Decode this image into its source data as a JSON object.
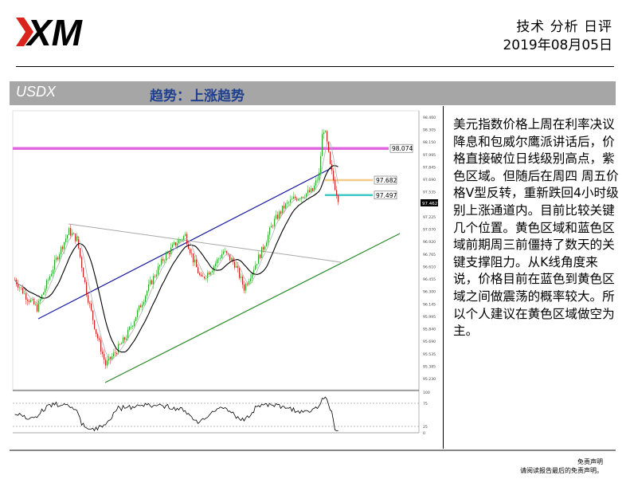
{
  "header": {
    "logo_text": "XM",
    "report_title": "技术 分析 日评",
    "report_date": "2019年08月05日"
  },
  "band": {
    "symbol": "USDX",
    "trend": "趋势：上涨趋势"
  },
  "chart_data": {
    "type": "candlestick",
    "symbol": "USDX",
    "y_ticks": [
      "98.460",
      "98.305",
      "98.150",
      "97.995",
      "97.845",
      "97.690",
      "97.535",
      "97.380",
      "97.225",
      "97.070",
      "96.920",
      "96.765",
      "96.610",
      "96.455",
      "96.300",
      "96.145",
      "95.995",
      "95.840",
      "95.690",
      "95.535",
      "95.385",
      "95.230"
    ],
    "ylim": [
      95.23,
      98.46
    ],
    "current_price": "97.462",
    "levels": [
      {
        "label": "98.074",
        "value": 98.074,
        "color": "#e066e0",
        "zone": "紫色区域"
      },
      {
        "label": "97.682",
        "value": 97.682,
        "color": "#f5c98a",
        "zone": "黄色区域"
      },
      {
        "label": "97.497",
        "value": 97.497,
        "color": "#40c8c8",
        "zone": "蓝色区域"
      }
    ],
    "oscillator_ticks": [
      "100",
      "75",
      "25",
      "0"
    ]
  },
  "analysis": {
    "text": "美元指数价格上周在利率决议降息和包威尔鹰派讲话后，价格直接破位日线级别高点，紫色区域。但随后在周四 周五价格V型反转，重新跌回4小时级别上涨通道内。目前比较关键几个位置。黄色区域和蓝色区域前期周三前僵持了数天的关键支撑阻力。从K线角度来说，价格目前在蓝色到黄色区域之间做震荡的概率较大。所以个人建议在黄色区域做空为主。"
  },
  "footer": {
    "line1": "免责声明",
    "line2": "请阅读报告最后的免责声明。"
  }
}
